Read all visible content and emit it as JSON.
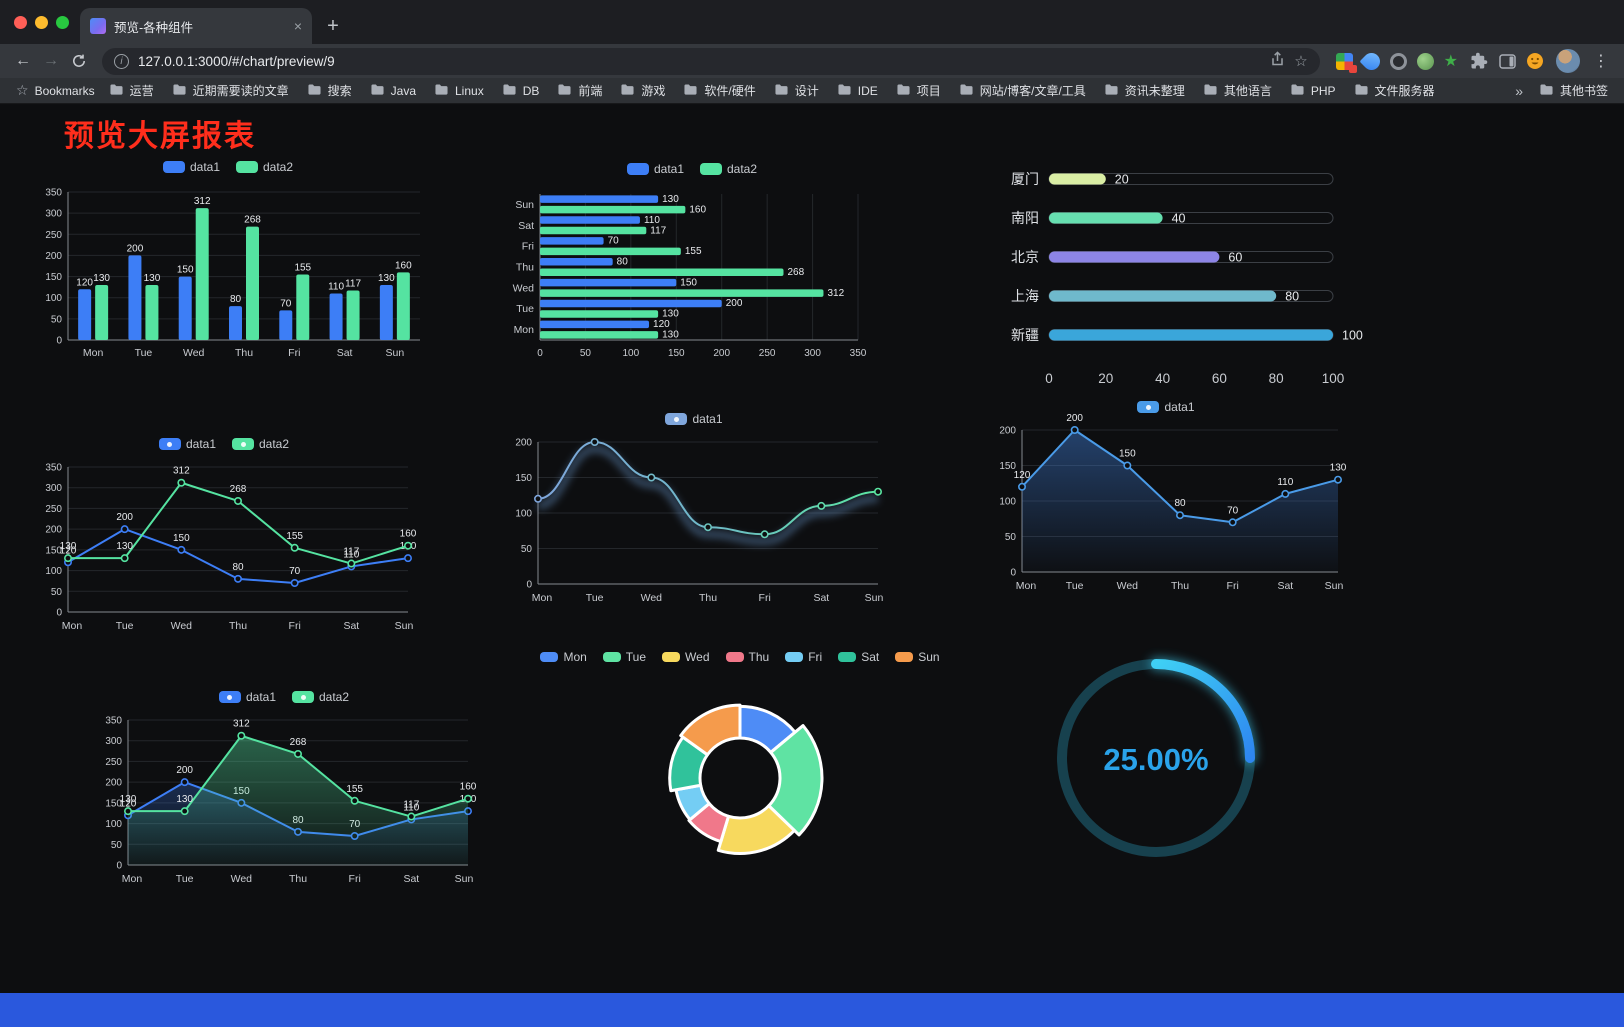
{
  "browser": {
    "tab": {
      "title": "预览-各种组件"
    },
    "url": "127.0.0.1:3000/#/chart/preview/9",
    "icons": {
      "close_tab": "×",
      "plus": "+",
      "back": "←",
      "forward": "→",
      "star": "☆",
      "menu": "⋮",
      "overflow": "»",
      "bookmarks_star": "☆",
      "info": "i"
    },
    "traffic_lights": [
      "#FF5F57",
      "#FEBC2E",
      "#28C840"
    ],
    "bookmarks_label": "Bookmarks",
    "bookmarks": [
      "运营",
      "近期需要读的文章",
      "搜索",
      "Java",
      "Linux",
      "DB",
      "前端",
      "游戏",
      "软件/硬件",
      "设计",
      "IDE",
      "项目",
      "网站/博客/文章/工具",
      "资讯未整理",
      "其他语言",
      "PHP",
      "文件服务器"
    ],
    "other_bookmarks": "其他书签",
    "extensions": [
      {
        "name": "blocks-extension-icon",
        "style": "blocks",
        "badge": true
      },
      {
        "name": "blue-drop-extension-icon",
        "style": "drop"
      },
      {
        "name": "ring-extension-icon",
        "style": "ring"
      },
      {
        "name": "green-circle-extension-icon",
        "style": "green"
      },
      {
        "name": "green-star-extension-icon",
        "style": "star",
        "glyph": "★"
      }
    ]
  },
  "page": {
    "title": "预览大屏报表",
    "title_color": "#FF2E1C",
    "background": "#0D0E10",
    "footer_color": "#2A58DD"
  },
  "chart_data": [
    {
      "type": "bar",
      "categories": [
        "Mon",
        "Tue",
        "Wed",
        "Thu",
        "Fri",
        "Sat",
        "Sun"
      ],
      "series": [
        {
          "name": "data1",
          "color": "#3D7EF6",
          "values": [
            120,
            200,
            150,
            80,
            70,
            110,
            130
          ]
        },
        {
          "name": "data2",
          "color": "#55E3A1",
          "values": [
            130,
            130,
            312,
            268,
            155,
            117,
            160
          ]
        }
      ],
      "ylim": [
        0,
        350
      ],
      "ytick": 50,
      "legend_position": "top"
    },
    {
      "type": "hbar",
      "categories": [
        "Mon",
        "Tue",
        "Wed",
        "Thu",
        "Fri",
        "Sat",
        "Sun"
      ],
      "series": [
        {
          "name": "data1",
          "color": "#3D7EF6",
          "values": [
            120,
            200,
            150,
            80,
            70,
            110,
            130
          ]
        },
        {
          "name": "data2",
          "color": "#55E3A1",
          "values": [
            130,
            130,
            312,
            268,
            155,
            117,
            160
          ]
        }
      ],
      "xlim": [
        0,
        350
      ],
      "xtick": 50,
      "legend_position": "top"
    },
    {
      "type": "progress",
      "rows": [
        {
          "label": "厦门",
          "value": 20,
          "color": "#D9EDA4"
        },
        {
          "label": "南阳",
          "value": 40,
          "color": "#66DFB0"
        },
        {
          "label": "北京",
          "value": 60,
          "color": "#8D85E6"
        },
        {
          "label": "上海",
          "value": 80,
          "color": "#6FB9CC"
        },
        {
          "label": "新疆",
          "value": 100,
          "color": "#3AA6DA"
        }
      ],
      "xlim": [
        0,
        100
      ],
      "xtick": 20
    },
    {
      "type": "line",
      "categories": [
        "Mon",
        "Tue",
        "Wed",
        "Thu",
        "Fri",
        "Sat",
        "Sun"
      ],
      "series": [
        {
          "name": "data1",
          "color": "#3D7EF6",
          "values": [
            120,
            200,
            150,
            80,
            70,
            110,
            130
          ]
        },
        {
          "name": "data2",
          "color": "#55E3A1",
          "values": [
            130,
            130,
            312,
            268,
            155,
            117,
            160
          ]
        }
      ],
      "ylim": [
        0,
        350
      ],
      "ytick": 50,
      "labels": true
    },
    {
      "type": "line",
      "categories": [
        "Mon",
        "Tue",
        "Wed",
        "Thu",
        "Fri",
        "Sat",
        "Sun"
      ],
      "series": [
        {
          "name": "data1",
          "gradient": [
            "#7FA6DC",
            "#6FB9C8",
            "#5BE6A2"
          ],
          "values": [
            120,
            200,
            150,
            80,
            70,
            110,
            130
          ]
        }
      ],
      "ylim": [
        0,
        200
      ],
      "ytick": 50,
      "labels": false,
      "smooth": true,
      "glow": true
    },
    {
      "type": "line",
      "categories": [
        "Mon",
        "Tue",
        "Wed",
        "Thu",
        "Fri",
        "Sat",
        "Sun"
      ],
      "series": [
        {
          "name": "data1",
          "color": "#4A9BE8",
          "values": [
            120,
            200,
            150,
            80,
            70,
            110,
            130
          ],
          "area": [
            "rgba(64,128,220,0.45)",
            "rgba(64,128,220,0.02)"
          ]
        }
      ],
      "ylim": [
        0,
        200
      ],
      "ytick": 50,
      "labels": true
    },
    {
      "type": "line",
      "categories": [
        "Mon",
        "Tue",
        "Wed",
        "Thu",
        "Fri",
        "Sat",
        "Sun"
      ],
      "series": [
        {
          "name": "data1",
          "color": "#3D7EF6",
          "values": [
            120,
            200,
            150,
            80,
            70,
            110,
            130
          ],
          "area": [
            "rgba(61,126,246,0.28)",
            "rgba(61,126,246,0.02)"
          ]
        },
        {
          "name": "data2",
          "color": "#55E3A1",
          "values": [
            130,
            130,
            312,
            268,
            155,
            117,
            160
          ],
          "area": [
            "rgba(85,227,161,0.40)",
            "rgba(85,227,161,0.04)"
          ]
        }
      ],
      "ylim": [
        0,
        350
      ],
      "ytick": 50,
      "labels": true
    },
    {
      "type": "donut",
      "rose": true,
      "inner_radius": 40,
      "slices": [
        {
          "label": "Mon",
          "value": 120,
          "color": "#4E8CF6"
        },
        {
          "label": "Tue",
          "value": 200,
          "color": "#5FE3A3"
        },
        {
          "label": "Wed",
          "value": 150,
          "color": "#F7D95E"
        },
        {
          "label": "Thu",
          "value": 80,
          "color": "#F0788A"
        },
        {
          "label": "Fri",
          "value": 70,
          "color": "#74CDF4"
        },
        {
          "label": "Sat",
          "value": 110,
          "color": "#30C29B"
        },
        {
          "label": "Sun",
          "value": 130,
          "color": "#F59B4C"
        }
      ]
    },
    {
      "type": "gauge",
      "value": 25,
      "display": "25.00%",
      "track_color": "#17414E",
      "arc_colors": [
        "#3FD0F5",
        "#2E86F0"
      ],
      "text_color": "#2AA3EA"
    }
  ]
}
